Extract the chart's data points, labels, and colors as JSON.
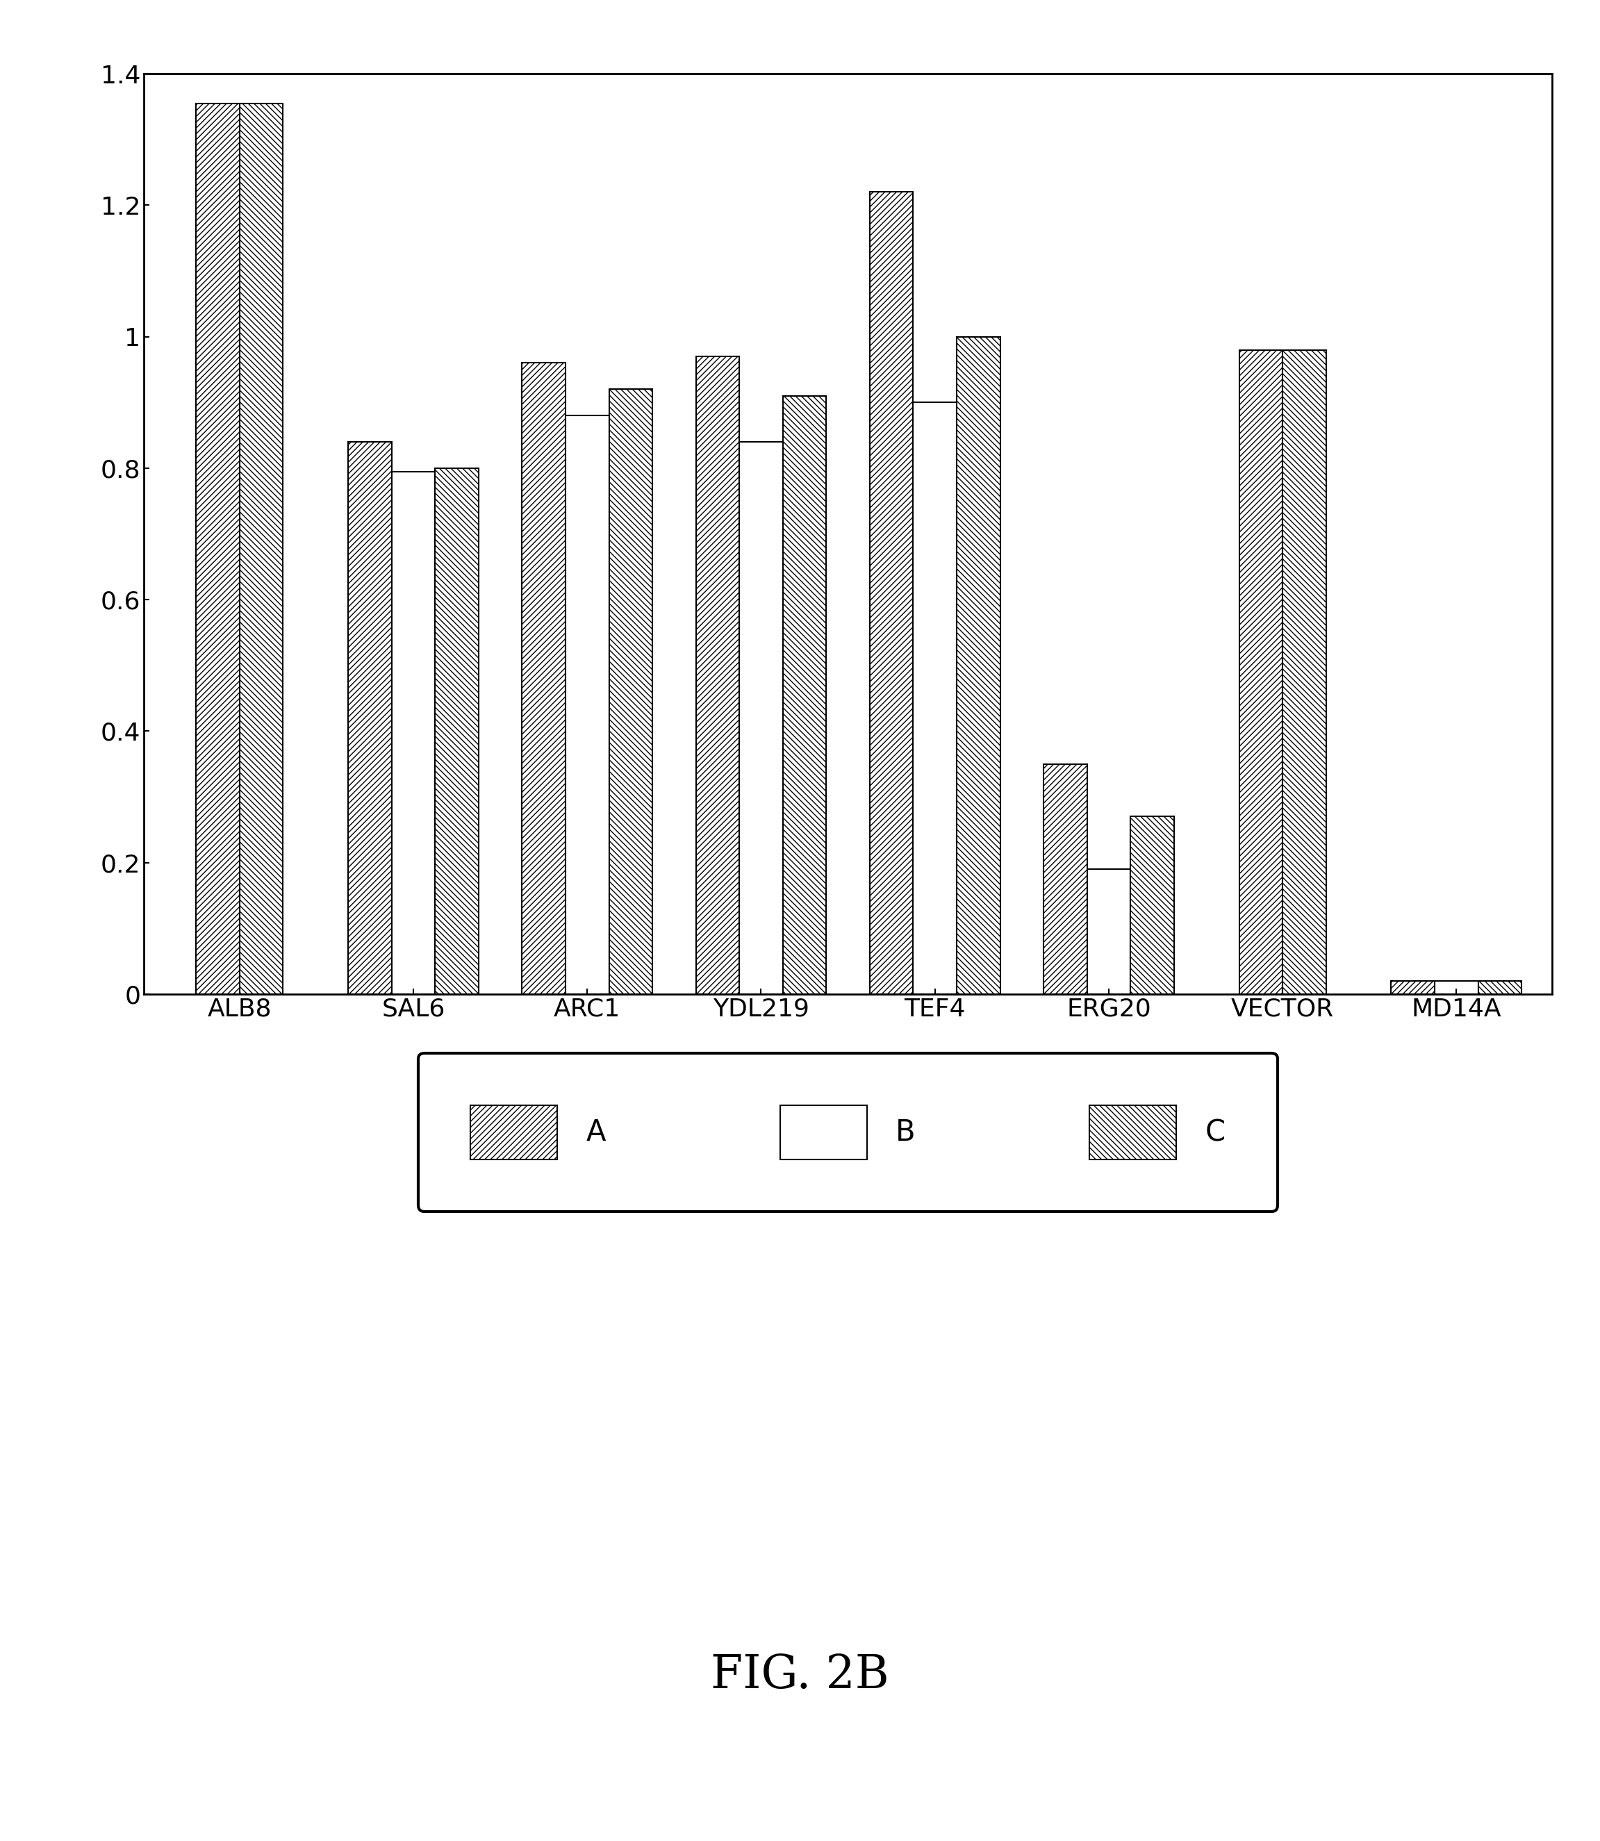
{
  "categories": [
    "ALB8",
    "SAL6",
    "ARC1",
    "YDL219",
    "TEF4",
    "ERG20",
    "VECTOR",
    "MD14A"
  ],
  "series_A": [
    1.355,
    0.84,
    0.96,
    0.97,
    1.22,
    0.35,
    0.98,
    0.02
  ],
  "series_B": [
    null,
    0.795,
    0.88,
    0.84,
    0.9,
    0.19,
    null,
    0.02
  ],
  "series_C": [
    1.355,
    0.8,
    0.92,
    0.91,
    1.0,
    0.27,
    0.98,
    0.02
  ],
  "ylim": [
    0,
    1.4
  ],
  "yticks": [
    0,
    0.2,
    0.4,
    0.6,
    0.8,
    1.0,
    1.2,
    1.4
  ],
  "legend_labels": [
    "A",
    "B",
    "C"
  ],
  "hatch_A": "////",
  "hatch_B": "",
  "hatch_C": "\\\\\\\\",
  "bar_color": "white",
  "bar_edgecolor": "black",
  "fig_label": "FIG. 2B",
  "tick_fontsize": 26,
  "legend_fontsize": 30,
  "fig_label_fontsize": 48,
  "bar_width": 0.25
}
